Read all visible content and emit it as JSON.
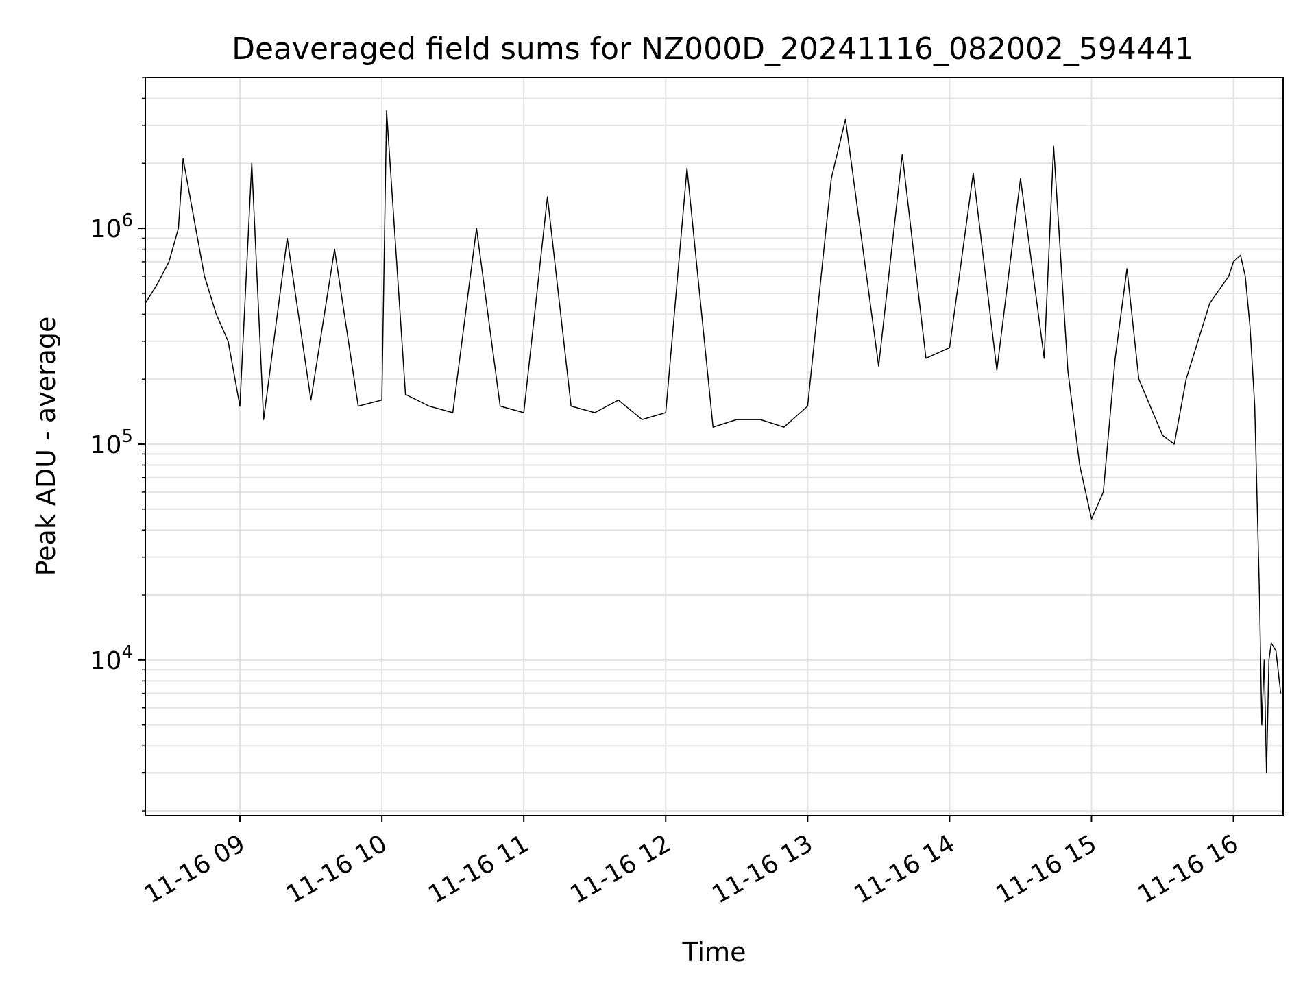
{
  "chart_data": {
    "type": "line",
    "title": "Deaveraged field sums for NZ000D_20241116_082002_594441",
    "xlabel": "Time",
    "ylabel": "Peak ADU - average",
    "yscale": "log",
    "xlim": [
      "2024-11-16T08:20",
      "2024-11-16T16:21"
    ],
    "ylim": [
      1900,
      5000000
    ],
    "grid": true,
    "line_color": "#000000",
    "x_ticks": [
      {
        "label": "11-16 09",
        "value": "2024-11-16T09:00"
      },
      {
        "label": "11-16 10",
        "value": "2024-11-16T10:00"
      },
      {
        "label": "11-16 11",
        "value": "2024-11-16T11:00"
      },
      {
        "label": "11-16 12",
        "value": "2024-11-16T12:00"
      },
      {
        "label": "11-16 13",
        "value": "2024-11-16T13:00"
      },
      {
        "label": "11-16 14",
        "value": "2024-11-16T14:00"
      },
      {
        "label": "11-16 15",
        "value": "2024-11-16T15:00"
      },
      {
        "label": "11-16 16",
        "value": "2024-11-16T16:00"
      }
    ],
    "y_ticks": [
      {
        "base": "10",
        "exp": "4",
        "value": 10000
      },
      {
        "base": "10",
        "exp": "5",
        "value": 100000
      },
      {
        "base": "10",
        "exp": "6",
        "value": 1000000
      }
    ],
    "series": [
      {
        "x": [
          "2024-11-16T08:20",
          "2024-11-16T08:25",
          "2024-11-16T08:30",
          "2024-11-16T08:34",
          "2024-11-16T08:36",
          "2024-11-16T08:40",
          "2024-11-16T08:45",
          "2024-11-16T08:50",
          "2024-11-16T08:55",
          "2024-11-16T09:00",
          "2024-11-16T09:05",
          "2024-11-16T09:10",
          "2024-11-16T09:20",
          "2024-11-16T09:30",
          "2024-11-16T09:40",
          "2024-11-16T09:50",
          "2024-11-16T10:00",
          "2024-11-16T10:02",
          "2024-11-16T10:10",
          "2024-11-16T10:20",
          "2024-11-16T10:30",
          "2024-11-16T10:40",
          "2024-11-16T10:50",
          "2024-11-16T11:00",
          "2024-11-16T11:10",
          "2024-11-16T11:20",
          "2024-11-16T11:30",
          "2024-11-16T11:40",
          "2024-11-16T11:50",
          "2024-11-16T12:00",
          "2024-11-16T12:09",
          "2024-11-16T12:20",
          "2024-11-16T12:30",
          "2024-11-16T12:40",
          "2024-11-16T12:50",
          "2024-11-16T13:00",
          "2024-11-16T13:10",
          "2024-11-16T13:16",
          "2024-11-16T13:30",
          "2024-11-16T13:40",
          "2024-11-16T13:50",
          "2024-11-16T14:00",
          "2024-11-16T14:10",
          "2024-11-16T14:20",
          "2024-11-16T14:30",
          "2024-11-16T14:40",
          "2024-11-16T14:44",
          "2024-11-16T14:50",
          "2024-11-16T14:55",
          "2024-11-16T15:00",
          "2024-11-16T15:05",
          "2024-11-16T15:10",
          "2024-11-16T15:15",
          "2024-11-16T15:20",
          "2024-11-16T15:30",
          "2024-11-16T15:35",
          "2024-11-16T15:40",
          "2024-11-16T15:50",
          "2024-11-16T15:58",
          "2024-11-16T16:00",
          "2024-11-16T16:03",
          "2024-11-16T16:05",
          "2024-11-16T16:07",
          "2024-11-16T16:09",
          "2024-11-16T16:11",
          "2024-11-16T16:12",
          "2024-11-16T16:13",
          "2024-11-16T16:14",
          "2024-11-16T16:15",
          "2024-11-16T16:16",
          "2024-11-16T16:18",
          "2024-11-16T16:20"
        ],
        "y": [
          450000,
          550000,
          700000,
          1000000,
          2100000,
          1200000,
          600000,
          400000,
          300000,
          150000,
          2000000,
          130000,
          900000,
          160000,
          800000,
          150000,
          160000,
          3500000,
          170000,
          150000,
          140000,
          1000000,
          150000,
          140000,
          1400000,
          150000,
          140000,
          160000,
          130000,
          140000,
          1900000,
          120000,
          130000,
          130000,
          120000,
          150000,
          1700000,
          3200000,
          230000,
          2200000,
          250000,
          280000,
          1800000,
          220000,
          1700000,
          250000,
          2400000,
          220000,
          80000,
          45000,
          60000,
          250000,
          650000,
          200000,
          110000,
          100000,
          200000,
          450000,
          600000,
          700000,
          750000,
          600000,
          350000,
          150000,
          20000,
          5000,
          10000,
          3000,
          10000,
          12000,
          11000,
          7000
        ]
      }
    ]
  }
}
